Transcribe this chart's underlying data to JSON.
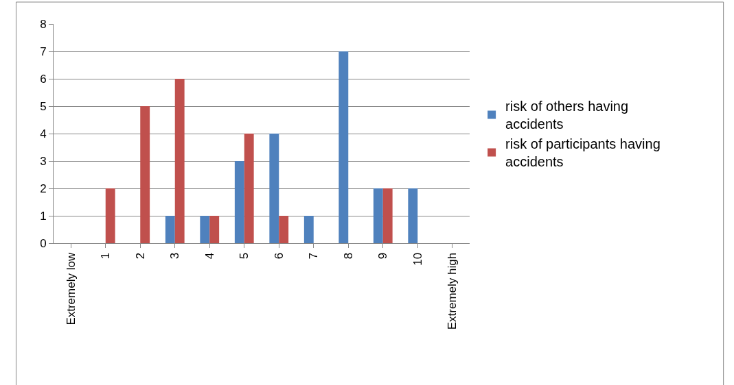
{
  "chart_data": {
    "type": "bar",
    "categories": [
      "Extremely low",
      "1",
      "2",
      "3",
      "4",
      "5",
      "6",
      "7",
      "8",
      "9",
      "10",
      "Extremely high"
    ],
    "series": [
      {
        "name": "risk of others having accidents",
        "color": "#4f81bd",
        "values": [
          0,
          0,
          0,
          1,
          1,
          3,
          4,
          1,
          7,
          2,
          2,
          0
        ]
      },
      {
        "name": "risk of participants having accidents",
        "color": "#c0504d",
        "values": [
          0,
          2,
          5,
          6,
          1,
          4,
          1,
          0,
          0,
          2,
          0,
          0
        ]
      }
    ],
    "ylim": [
      0,
      8
    ],
    "yticks": [
      0,
      1,
      2,
      3,
      4,
      5,
      6,
      7,
      8
    ],
    "grid": "y",
    "legend": "right"
  }
}
